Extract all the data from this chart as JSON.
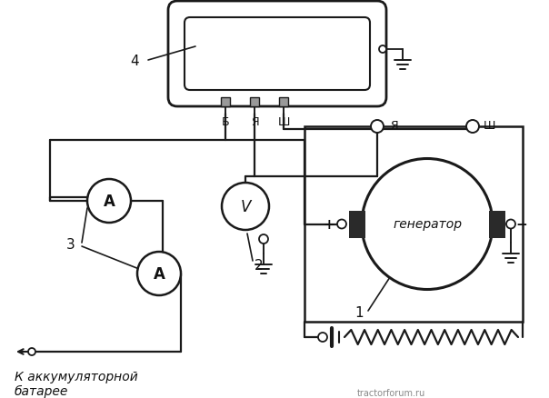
{
  "bg_color": "#ffffff",
  "line_color": "#1a1a1a",
  "text_color": "#111111",
  "watermark": "tractorforum.ru",
  "labels": {
    "generator": "генератор",
    "to_battery": "К аккумуляторной\nбатарее",
    "b_label": "Б",
    "ya_label": "Я",
    "sh_label": "Ш",
    "ya_gen": "Я",
    "sh_gen": "Ш",
    "num1": "1",
    "num2": "2",
    "num3": "3",
    "num4": "4",
    "plus": "+",
    "minus": "−"
  }
}
